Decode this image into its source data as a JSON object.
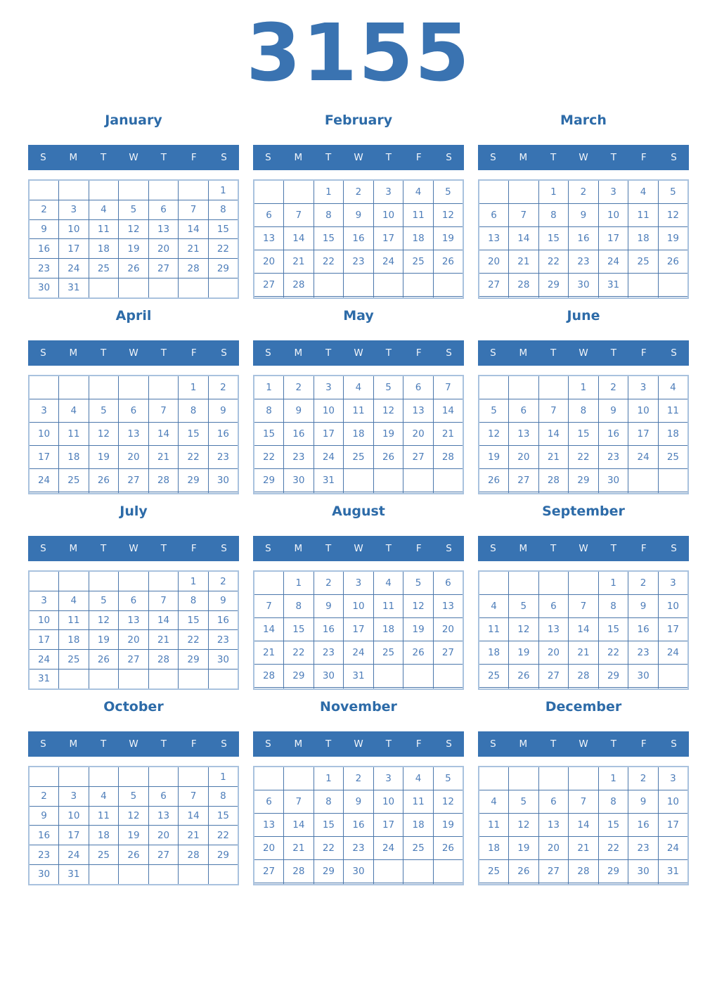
{
  "year": "3155",
  "weekdays": [
    "S",
    "M",
    "T",
    "W",
    "T",
    "F",
    "S"
  ],
  "colors": {
    "year_title": "#3a73b1",
    "month_title": "#2d6ba8",
    "weekday_bar_background": "#3873b2",
    "weekday_text": "#f2f6fb",
    "date_text": "#4d7db9",
    "grid_inner_border": "#4b77ab",
    "grid_outer_border": "#a9c2de",
    "page_background": "#ffffff"
  },
  "months": [
    {
      "name": "January",
      "weeks": [
        [
          "",
          "",
          "",
          "",
          "",
          "",
          "1"
        ],
        [
          "2",
          "3",
          "4",
          "5",
          "6",
          "7",
          "8"
        ],
        [
          "9",
          "10",
          "11",
          "12",
          "13",
          "14",
          "15"
        ],
        [
          "16",
          "17",
          "18",
          "19",
          "20",
          "21",
          "22"
        ],
        [
          "23",
          "24",
          "25",
          "26",
          "27",
          "28",
          "29"
        ],
        [
          "30",
          "31",
          "",
          "",
          "",
          "",
          ""
        ]
      ]
    },
    {
      "name": "February",
      "weeks": [
        [
          "",
          "",
          "1",
          "2",
          "3",
          "4",
          "5"
        ],
        [
          "6",
          "7",
          "8",
          "9",
          "10",
          "11",
          "12"
        ],
        [
          "13",
          "14",
          "15",
          "16",
          "17",
          "18",
          "19"
        ],
        [
          "20",
          "21",
          "22",
          "23",
          "24",
          "25",
          "26"
        ],
        [
          "27",
          "28",
          "",
          "",
          "",
          "",
          ""
        ],
        [
          "",
          "",
          "",
          "",
          "",
          "",
          ""
        ]
      ]
    },
    {
      "name": "March",
      "weeks": [
        [
          "",
          "",
          "1",
          "2",
          "3",
          "4",
          "5"
        ],
        [
          "6",
          "7",
          "8",
          "9",
          "10",
          "11",
          "12"
        ],
        [
          "13",
          "14",
          "15",
          "16",
          "17",
          "18",
          "19"
        ],
        [
          "20",
          "21",
          "22",
          "23",
          "24",
          "25",
          "26"
        ],
        [
          "27",
          "28",
          "29",
          "30",
          "31",
          "",
          ""
        ],
        [
          "",
          "",
          "",
          "",
          "",
          "",
          ""
        ]
      ]
    },
    {
      "name": "April",
      "weeks": [
        [
          "",
          "",
          "",
          "",
          "",
          "1",
          "2"
        ],
        [
          "3",
          "4",
          "5",
          "6",
          "7",
          "8",
          "9"
        ],
        [
          "10",
          "11",
          "12",
          "13",
          "14",
          "15",
          "16"
        ],
        [
          "17",
          "18",
          "19",
          "20",
          "21",
          "22",
          "23"
        ],
        [
          "24",
          "25",
          "26",
          "27",
          "28",
          "29",
          "30"
        ],
        [
          "",
          "",
          "",
          "",
          "",
          "",
          ""
        ]
      ]
    },
    {
      "name": "May",
      "weeks": [
        [
          "1",
          "2",
          "3",
          "4",
          "5",
          "6",
          "7"
        ],
        [
          "8",
          "9",
          "10",
          "11",
          "12",
          "13",
          "14"
        ],
        [
          "15",
          "16",
          "17",
          "18",
          "19",
          "20",
          "21"
        ],
        [
          "22",
          "23",
          "24",
          "25",
          "26",
          "27",
          "28"
        ],
        [
          "29",
          "30",
          "31",
          "",
          "",
          "",
          ""
        ],
        [
          "",
          "",
          "",
          "",
          "",
          "",
          ""
        ]
      ]
    },
    {
      "name": "June",
      "weeks": [
        [
          "",
          "",
          "",
          "1",
          "2",
          "3",
          "4"
        ],
        [
          "5",
          "6",
          "7",
          "8",
          "9",
          "10",
          "11"
        ],
        [
          "12",
          "13",
          "14",
          "15",
          "16",
          "17",
          "18"
        ],
        [
          "19",
          "20",
          "21",
          "22",
          "23",
          "24",
          "25"
        ],
        [
          "26",
          "27",
          "28",
          "29",
          "30",
          "",
          ""
        ],
        [
          "",
          "",
          "",
          "",
          "",
          "",
          ""
        ]
      ]
    },
    {
      "name": "July",
      "weeks": [
        [
          "",
          "",
          "",
          "",
          "",
          "1",
          "2"
        ],
        [
          "3",
          "4",
          "5",
          "6",
          "7",
          "8",
          "9"
        ],
        [
          "10",
          "11",
          "12",
          "13",
          "14",
          "15",
          "16"
        ],
        [
          "17",
          "18",
          "19",
          "20",
          "21",
          "22",
          "23"
        ],
        [
          "24",
          "25",
          "26",
          "27",
          "28",
          "29",
          "30"
        ],
        [
          "31",
          "",
          "",
          "",
          "",
          "",
          ""
        ]
      ]
    },
    {
      "name": "August",
      "weeks": [
        [
          "",
          "1",
          "2",
          "3",
          "4",
          "5",
          "6"
        ],
        [
          "7",
          "8",
          "9",
          "10",
          "11",
          "12",
          "13"
        ],
        [
          "14",
          "15",
          "16",
          "17",
          "18",
          "19",
          "20"
        ],
        [
          "21",
          "22",
          "23",
          "24",
          "25",
          "26",
          "27"
        ],
        [
          "28",
          "29",
          "30",
          "31",
          "",
          "",
          ""
        ],
        [
          "",
          "",
          "",
          "",
          "",
          "",
          ""
        ]
      ]
    },
    {
      "name": "September",
      "weeks": [
        [
          "",
          "",
          "",
          "",
          "1",
          "2",
          "3"
        ],
        [
          "4",
          "5",
          "6",
          "7",
          "8",
          "9",
          "10"
        ],
        [
          "11",
          "12",
          "13",
          "14",
          "15",
          "16",
          "17"
        ],
        [
          "18",
          "19",
          "20",
          "21",
          "22",
          "23",
          "24"
        ],
        [
          "25",
          "26",
          "27",
          "28",
          "29",
          "30",
          ""
        ],
        [
          "",
          "",
          "",
          "",
          "",
          "",
          ""
        ]
      ]
    },
    {
      "name": "October",
      "weeks": [
        [
          "",
          "",
          "",
          "",
          "",
          "",
          "1"
        ],
        [
          "2",
          "3",
          "4",
          "5",
          "6",
          "7",
          "8"
        ],
        [
          "9",
          "10",
          "11",
          "12",
          "13",
          "14",
          "15"
        ],
        [
          "16",
          "17",
          "18",
          "19",
          "20",
          "21",
          "22"
        ],
        [
          "23",
          "24",
          "25",
          "26",
          "27",
          "28",
          "29"
        ],
        [
          "30",
          "31",
          "",
          "",
          "",
          "",
          ""
        ]
      ]
    },
    {
      "name": "November",
      "weeks": [
        [
          "",
          "",
          "1",
          "2",
          "3",
          "4",
          "5"
        ],
        [
          "6",
          "7",
          "8",
          "9",
          "10",
          "11",
          "12"
        ],
        [
          "13",
          "14",
          "15",
          "16",
          "17",
          "18",
          "19"
        ],
        [
          "20",
          "21",
          "22",
          "23",
          "24",
          "25",
          "26"
        ],
        [
          "27",
          "28",
          "29",
          "30",
          "",
          "",
          ""
        ],
        [
          "",
          "",
          "",
          "",
          "",
          "",
          ""
        ]
      ]
    },
    {
      "name": "December",
      "weeks": [
        [
          "",
          "",
          "",
          "",
          "1",
          "2",
          "3"
        ],
        [
          "4",
          "5",
          "6",
          "7",
          "8",
          "9",
          "10"
        ],
        [
          "11",
          "12",
          "13",
          "14",
          "15",
          "16",
          "17"
        ],
        [
          "18",
          "19",
          "20",
          "21",
          "22",
          "23",
          "24"
        ],
        [
          "25",
          "26",
          "27",
          "28",
          "29",
          "30",
          "31"
        ],
        [
          "",
          "",
          "",
          "",
          "",
          "",
          ""
        ]
      ]
    }
  ]
}
